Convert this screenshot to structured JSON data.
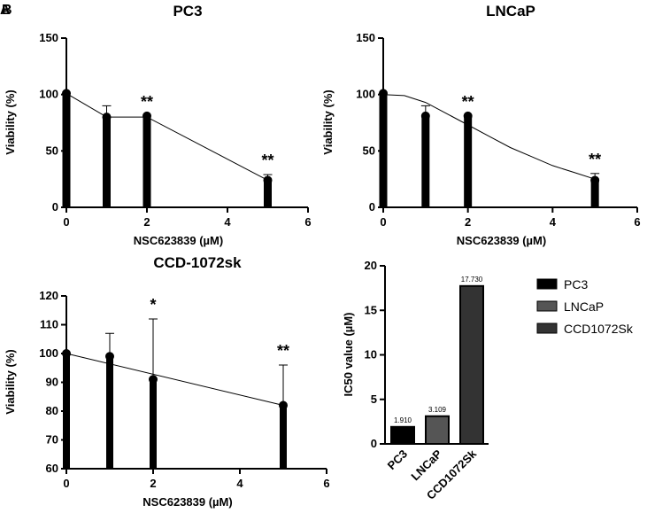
{
  "panel_labels": [
    "A",
    "B"
  ],
  "colors": {
    "bar": "#000000",
    "pc3": "#000000",
    "lncap": "#555555",
    "ccd": "#333333"
  },
  "chart_data": [
    {
      "type": "bar",
      "title": "PC3",
      "xlabel": "NSC623839 (µM)",
      "ylabel": "Viability (%)",
      "xlim": [
        0,
        6
      ],
      "ylim": [
        0,
        150
      ],
      "xticks": [
        0,
        2,
        4,
        6
      ],
      "yticks": [
        0,
        50,
        100,
        150
      ],
      "x": [
        0,
        1,
        2,
        5
      ],
      "values": [
        101,
        80,
        81,
        24
      ],
      "errors": [
        0,
        10,
        0,
        5
      ],
      "significance": [
        "",
        "",
        "**",
        "**"
      ],
      "fit": [
        [
          0,
          101
        ],
        [
          1,
          80
        ],
        [
          2,
          80
        ],
        [
          5,
          24
        ]
      ]
    },
    {
      "type": "bar",
      "title": "LNCaP",
      "xlabel": "NSC623839 (µM)",
      "ylabel": "Viability (%)",
      "xlim": [
        0,
        6
      ],
      "ylim": [
        0,
        150
      ],
      "xticks": [
        0,
        2,
        4,
        6
      ],
      "yticks": [
        0,
        50,
        100,
        150
      ],
      "x": [
        0,
        1,
        2,
        5
      ],
      "values": [
        101,
        81,
        81,
        24
      ],
      "errors": [
        0,
        9,
        0,
        6
      ],
      "significance": [
        "",
        "",
        "**",
        "**"
      ],
      "fit": [
        [
          0,
          100
        ],
        [
          0.5,
          99
        ],
        [
          1,
          93
        ],
        [
          1.5,
          83
        ],
        [
          2,
          73
        ],
        [
          2.5,
          63
        ],
        [
          3,
          53
        ],
        [
          3.5,
          45
        ],
        [
          4,
          37
        ],
        [
          4.5,
          31
        ],
        [
          5,
          25
        ]
      ]
    },
    {
      "type": "bar",
      "title": "CCD-1072sk",
      "xlabel": "NSC623839 (µM)",
      "ylabel": "Viability (%)",
      "xlim": [
        0,
        6
      ],
      "ylim": [
        60,
        120
      ],
      "xticks": [
        0,
        2,
        4,
        6
      ],
      "yticks": [
        60,
        70,
        80,
        90,
        100,
        110,
        120
      ],
      "x": [
        0,
        1,
        2,
        5
      ],
      "values": [
        100,
        99,
        91,
        82
      ],
      "errors": [
        0,
        8,
        21,
        14
      ],
      "significance": [
        "",
        "",
        "*",
        "**"
      ],
      "fit": [
        [
          0,
          100
        ],
        [
          5,
          82
        ]
      ]
    },
    {
      "type": "bar",
      "title": "",
      "xlabel": "",
      "ylabel": "IC50 value (µM)",
      "ylim": [
        0,
        20
      ],
      "yticks": [
        0,
        5,
        10,
        15,
        20
      ],
      "categories": [
        "PC3",
        "LNCaP",
        "CCD1072Sk"
      ],
      "values": [
        1.91,
        3.109,
        17.73
      ],
      "value_labels": [
        "1.910",
        "3.109",
        "17.730"
      ],
      "legend": [
        "PC3",
        "LNCaP",
        "CCD1072Sk"
      ],
      "legend_position": "right"
    }
  ]
}
